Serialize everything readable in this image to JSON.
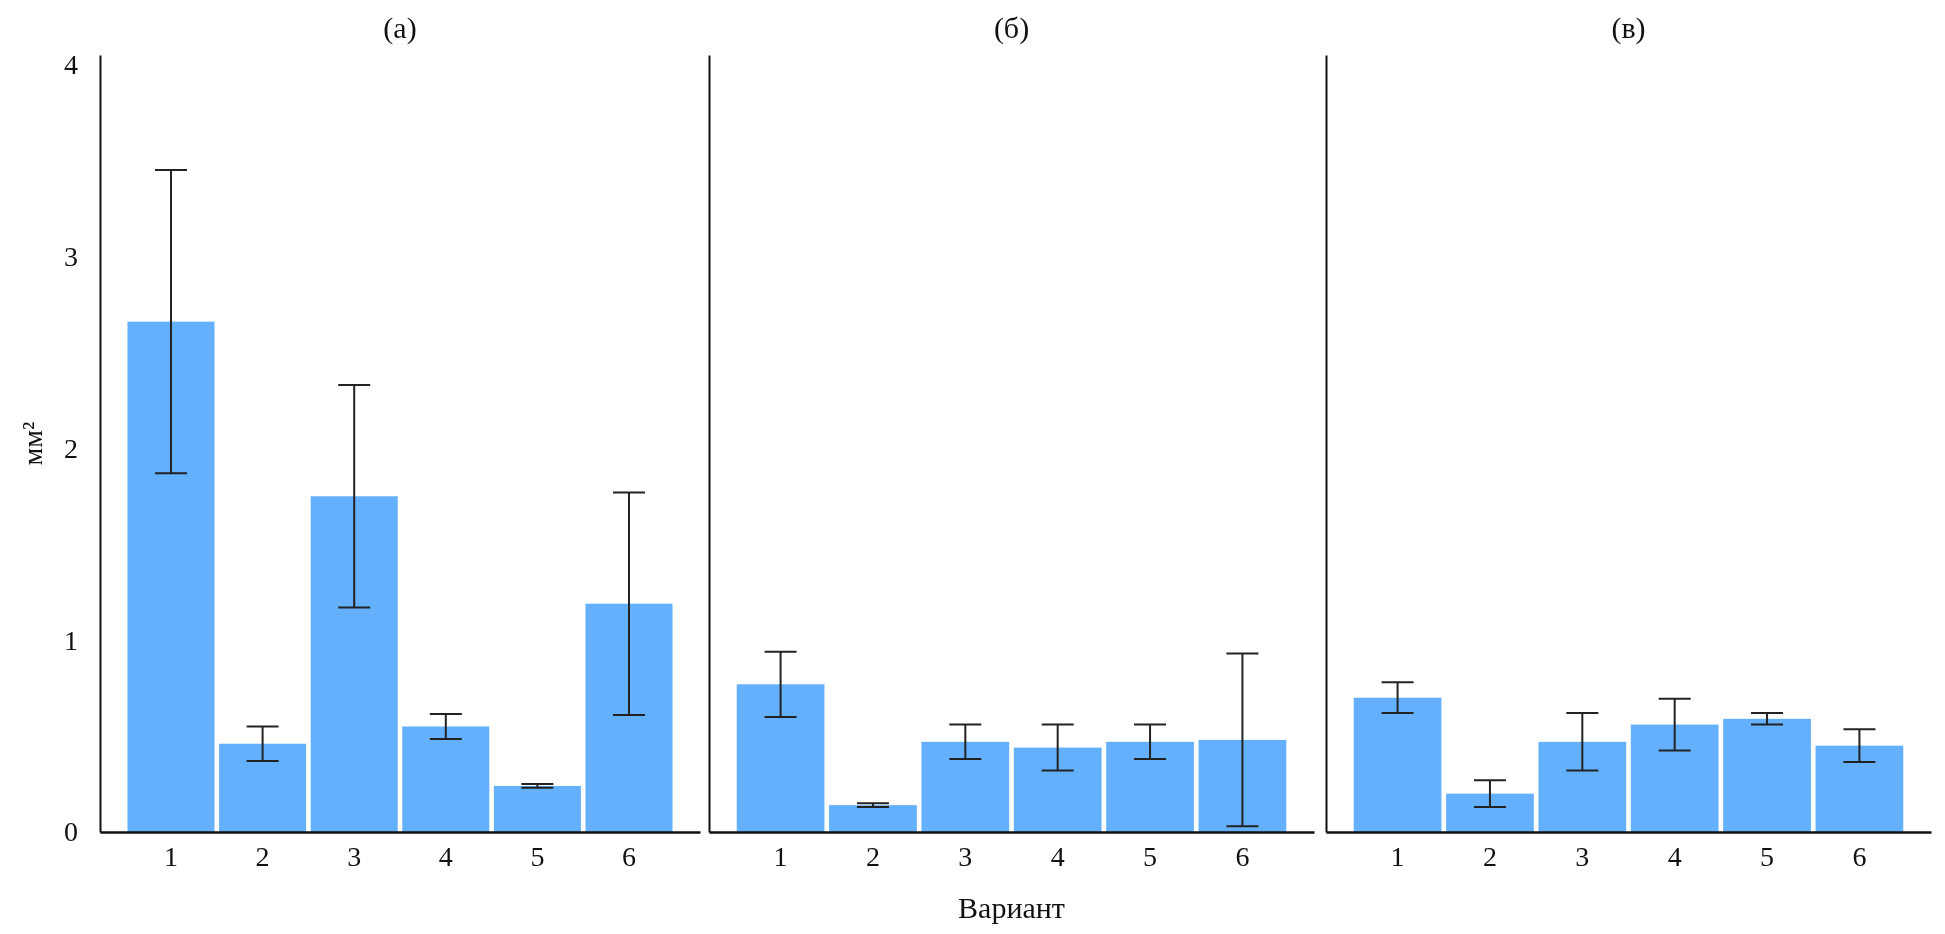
{
  "chart_data": [
    {
      "type": "bar",
      "title": "(a)",
      "ylabel": "мм²",
      "categories": [
        "1",
        "2",
        "3",
        "4",
        "5",
        "6"
      ],
      "color": "#64b0fc",
      "values": [
        2.66,
        0.46,
        1.75,
        0.55,
        0.24,
        1.19
      ],
      "errors": [
        0.79,
        0.09,
        0.58,
        0.065,
        0.01,
        0.58
      ],
      "ylim": [
        0,
        4.05
      ],
      "yticks": [
        0,
        1,
        2,
        3,
        4
      ],
      "grid": false
    },
    {
      "type": "bar",
      "title": "(б)",
      "xlabel": "Вариант",
      "categories": [
        "1",
        "2",
        "3",
        "4",
        "5",
        "6"
      ],
      "color": "#64b0fc",
      "values": [
        0.77,
        0.14,
        0.47,
        0.44,
        0.47,
        0.48
      ],
      "errors": [
        0.17,
        0.01,
        0.09,
        0.12,
        0.09,
        0.45
      ],
      "ylim": [
        0,
        4.05
      ],
      "tick_labels": "x",
      "grid": false
    },
    {
      "type": "bar",
      "title": "(в)",
      "categories": [
        "1",
        "2",
        "3",
        "4",
        "5",
        "6"
      ],
      "color": "#64b0fc",
      "values": [
        0.7,
        0.2,
        0.47,
        0.56,
        0.59,
        0.45
      ],
      "errors": [
        0.08,
        0.07,
        0.15,
        0.135,
        0.03,
        0.085
      ],
      "ylim": [
        0,
        4.05
      ],
      "tick_labels": "x",
      "grid": false
    }
  ]
}
